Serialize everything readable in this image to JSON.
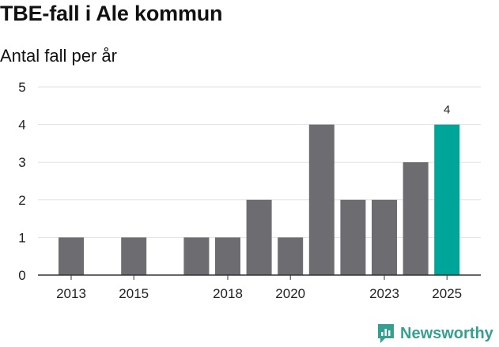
{
  "title": "TBE-fall i Ale kommun",
  "subtitle": "Antal fall per år",
  "brand": {
    "name": "Newsworthy",
    "icon": "newsworthy-logo-icon",
    "color": "#35a08f"
  },
  "colors": {
    "bar": "#6d6c71",
    "highlight": "#00a59a",
    "grid": "#e2e2e2",
    "axis": "#333333"
  },
  "chart_data": {
    "type": "bar",
    "x": [
      2013,
      2014,
      2015,
      2016,
      2017,
      2018,
      2019,
      2020,
      2021,
      2022,
      2023,
      2024,
      2025
    ],
    "values": [
      1,
      0,
      1,
      0,
      1,
      1,
      2,
      1,
      4,
      2,
      2,
      3,
      4
    ],
    "highlight_index": 12,
    "highlight_label": "4",
    "xticks": [
      "2013",
      "2015",
      "2018",
      "2020",
      "2023",
      "2025"
    ],
    "yticks": [
      "0",
      "1",
      "2",
      "3",
      "4",
      "5"
    ],
    "ylim": [
      0,
      5
    ],
    "grid": true
  }
}
